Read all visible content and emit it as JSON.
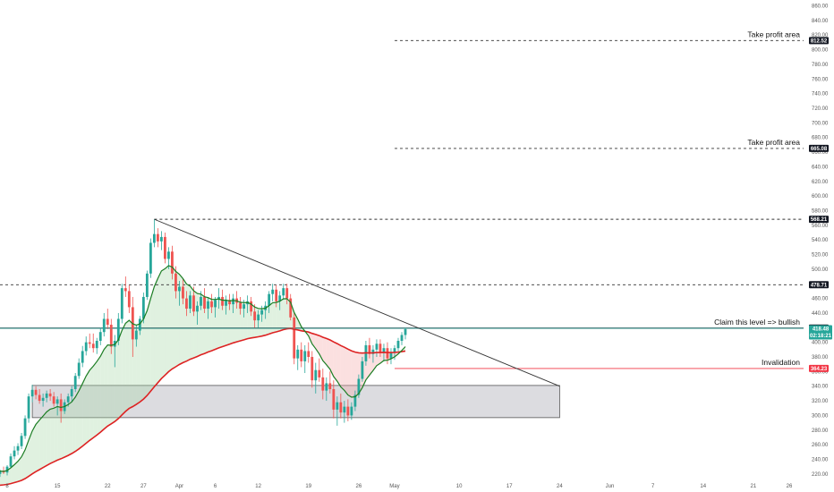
{
  "chart_data": {
    "type": "candlestick",
    "title": "",
    "xlabel": "",
    "ylabel": "",
    "ylim": [
      210,
      868
    ],
    "y_ticks": [
      220,
      240,
      260,
      280,
      300,
      320,
      340,
      360,
      380,
      400,
      420,
      440,
      460,
      480,
      500,
      520,
      540,
      560,
      580,
      600,
      620,
      640,
      660,
      680,
      700,
      720,
      740,
      760,
      780,
      800,
      820,
      840,
      860
    ],
    "y_tick_labels": [
      "220.00",
      "240.00",
      "260.00",
      "280.00",
      "300.00",
      "320.00",
      "340.00",
      "360.00",
      "380.00",
      "400.00",
      "420.00",
      "440.00",
      "460.00",
      "480.00",
      "500.00",
      "520.00",
      "540.00",
      "560.00",
      "580.00",
      "600.00",
      "620.00",
      "640.00",
      "660.00",
      "680.00",
      "700.00",
      "720.00",
      "740.00",
      "760.00",
      "780.00",
      "800.00",
      "820.00",
      "840.00",
      "860.00"
    ],
    "x_tick_labels": [
      "8",
      "15",
      "22",
      "27",
      "Apr",
      "6",
      "12",
      "19",
      "26",
      "May",
      "10",
      "17",
      "24",
      "Jun",
      "7",
      "14",
      "21",
      "26"
    ],
    "x_tick_days": [
      0,
      7,
      14,
      19,
      24,
      29,
      35,
      42,
      49,
      54,
      63,
      70,
      77,
      84,
      90,
      97,
      104,
      109
    ],
    "x_range_days": [
      -1,
      111
    ],
    "price_levels": [
      {
        "label": "Take profit area",
        "value": 812.52,
        "badge": "812.52",
        "style": "dashed"
      },
      {
        "label": "Take profit area",
        "value": 665.08,
        "badge": "665.08",
        "style": "dashed"
      },
      {
        "label": "",
        "value": 568.21,
        "badge": "568.21",
        "style": "dashed"
      },
      {
        "label": "",
        "value": 478.71,
        "badge": "478.71",
        "style": "dashed"
      },
      {
        "label": "Claim this level => bullish",
        "value": 419.44,
        "badge": "419.44",
        "style": "solid"
      },
      {
        "label": "Invalidation",
        "value": 364.23,
        "badge": "364.23",
        "style": "red"
      }
    ],
    "current_price": {
      "value": 418.48,
      "label": "418.48",
      "countdown": "02:18:21"
    },
    "trendline": {
      "from": [
        20.5,
        568.21
      ],
      "to": [
        77,
        340
      ]
    },
    "support_zone": {
      "x_from": 3.5,
      "x_to": 77,
      "y_low": 297,
      "y_high": 341
    },
    "candles": [
      [
        -1,
        220,
        226,
        216,
        224
      ],
      [
        -0.5,
        224,
        230,
        220,
        222
      ],
      [
        0,
        222,
        232,
        218,
        230
      ],
      [
        0.5,
        230,
        248,
        228,
        244
      ],
      [
        1,
        244,
        258,
        240,
        252
      ],
      [
        1.5,
        252,
        262,
        246,
        258
      ],
      [
        2,
        258,
        276,
        254,
        272
      ],
      [
        2.5,
        272,
        300,
        268,
        296
      ],
      [
        3,
        296,
        330,
        290,
        326
      ],
      [
        3.5,
        326,
        342,
        318,
        335
      ],
      [
        4,
        335,
        340,
        322,
        328
      ],
      [
        4.5,
        328,
        336,
        316,
        320
      ],
      [
        5,
        320,
        330,
        312,
        324
      ],
      [
        5.5,
        324,
        334,
        318,
        330
      ],
      [
        6,
        330,
        336,
        320,
        326
      ],
      [
        6.5,
        326,
        332,
        312,
        316
      ],
      [
        7,
        316,
        326,
        300,
        322
      ],
      [
        7.5,
        322,
        330,
        290,
        306
      ],
      [
        8,
        306,
        322,
        302,
        318
      ],
      [
        8.5,
        318,
        330,
        312,
        326
      ],
      [
        9,
        326,
        340,
        318,
        336
      ],
      [
        9.5,
        336,
        358,
        332,
        354
      ],
      [
        10,
        354,
        378,
        350,
        372
      ],
      [
        10.5,
        372,
        395,
        366,
        388
      ],
      [
        11,
        388,
        408,
        382,
        400
      ],
      [
        11.5,
        400,
        412,
        392,
        398
      ],
      [
        12,
        398,
        412,
        386,
        392
      ],
      [
        12.5,
        392,
        406,
        384,
        402
      ],
      [
        13,
        402,
        420,
        396,
        414
      ],
      [
        13.5,
        414,
        440,
        408,
        432
      ],
      [
        14,
        432,
        446,
        418,
        424
      ],
      [
        14.5,
        424,
        432,
        384,
        394
      ],
      [
        15,
        394,
        410,
        366,
        402
      ],
      [
        15.5,
        402,
        440,
        396,
        432
      ],
      [
        16,
        432,
        480,
        426,
        474
      ],
      [
        16.5,
        474,
        490,
        462,
        470
      ],
      [
        17,
        470,
        478,
        440,
        448
      ],
      [
        17.5,
        448,
        462,
        380,
        404
      ],
      [
        18,
        404,
        424,
        394,
        416
      ],
      [
        18.5,
        416,
        436,
        410,
        432
      ],
      [
        19,
        432,
        468,
        426,
        462
      ],
      [
        19.5,
        462,
        498,
        458,
        494
      ],
      [
        20,
        494,
        542,
        488,
        536
      ],
      [
        20.5,
        536,
        568,
        530,
        548
      ],
      [
        21,
        548,
        556,
        530,
        538
      ],
      [
        21.5,
        538,
        552,
        526,
        544
      ],
      [
        22,
        544,
        550,
        508,
        514
      ],
      [
        22.5,
        514,
        530,
        500,
        524
      ],
      [
        23,
        524,
        532,
        486,
        494
      ],
      [
        23.5,
        494,
        504,
        460,
        470
      ],
      [
        24,
        470,
        484,
        450,
        476
      ],
      [
        24.5,
        476,
        486,
        452,
        460
      ],
      [
        25,
        460,
        470,
        436,
        446
      ],
      [
        25.5,
        446,
        470,
        440,
        464
      ],
      [
        26,
        464,
        476,
        436,
        442
      ],
      [
        26.5,
        442,
        456,
        424,
        450
      ],
      [
        27,
        450,
        470,
        444,
        462
      ],
      [
        27.5,
        462,
        474,
        440,
        446
      ],
      [
        28,
        446,
        462,
        432,
        456
      ],
      [
        28.5,
        456,
        466,
        440,
        448
      ],
      [
        29,
        448,
        462,
        434,
        458
      ],
      [
        29.5,
        458,
        474,
        446,
        462
      ],
      [
        30,
        462,
        472,
        444,
        450
      ],
      [
        30.5,
        450,
        464,
        438,
        458
      ],
      [
        31,
        458,
        466,
        444,
        452
      ],
      [
        31.5,
        452,
        466,
        440,
        460
      ],
      [
        32,
        460,
        470,
        446,
        454
      ],
      [
        32.5,
        454,
        462,
        438,
        446
      ],
      [
        33,
        446,
        458,
        434,
        452
      ],
      [
        33.5,
        452,
        464,
        440,
        456
      ],
      [
        34,
        456,
        462,
        436,
        442
      ],
      [
        34.5,
        442,
        452,
        420,
        430
      ],
      [
        35,
        430,
        444,
        420,
        438
      ],
      [
        35.5,
        438,
        450,
        428,
        444
      ],
      [
        36,
        444,
        456,
        432,
        450
      ],
      [
        36.5,
        450,
        470,
        440,
        466
      ],
      [
        37,
        466,
        480,
        456,
        472
      ],
      [
        37.5,
        472,
        478,
        448,
        456
      ],
      [
        38,
        456,
        470,
        444,
        464
      ],
      [
        38.5,
        464,
        480,
        458,
        474
      ],
      [
        39,
        474,
        480,
        452,
        460
      ],
      [
        39.5,
        460,
        466,
        430,
        434
      ],
      [
        40,
        434,
        440,
        370,
        378
      ],
      [
        40.5,
        378,
        396,
        362,
        390
      ],
      [
        41,
        390,
        400,
        366,
        374
      ],
      [
        41.5,
        374,
        396,
        358,
        388
      ],
      [
        42,
        388,
        400,
        372,
        380
      ],
      [
        42.5,
        380,
        388,
        338,
        348
      ],
      [
        43,
        348,
        372,
        330,
        362
      ],
      [
        43.5,
        362,
        378,
        346,
        352
      ],
      [
        44,
        352,
        364,
        322,
        334
      ],
      [
        44.5,
        334,
        352,
        320,
        344
      ],
      [
        45,
        344,
        360,
        330,
        336
      ],
      [
        45.5,
        336,
        348,
        296,
        308
      ],
      [
        46,
        308,
        326,
        286,
        318
      ],
      [
        46.5,
        318,
        330,
        296,
        304
      ],
      [
        47,
        304,
        320,
        290,
        312
      ],
      [
        47.5,
        312,
        322,
        292,
        300
      ],
      [
        48,
        300,
        318,
        294,
        312
      ],
      [
        48.5,
        312,
        334,
        306,
        328
      ],
      [
        49,
        328,
        356,
        324,
        350
      ],
      [
        49.5,
        350,
        380,
        346,
        374
      ],
      [
        50,
        374,
        402,
        368,
        396
      ],
      [
        50.5,
        396,
        406,
        378,
        384
      ],
      [
        51,
        384,
        396,
        372,
        390
      ],
      [
        51.5,
        390,
        404,
        380,
        398
      ],
      [
        52,
        398,
        404,
        380,
        386
      ],
      [
        52.5,
        386,
        398,
        374,
        392
      ],
      [
        53,
        392,
        400,
        370,
        378
      ],
      [
        53.5,
        378,
        392,
        370,
        386
      ],
      [
        54,
        386,
        396,
        376,
        392
      ],
      [
        54.5,
        392,
        406,
        388,
        402
      ],
      [
        55,
        402,
        414,
        396,
        410
      ],
      [
        55.5,
        410,
        420,
        404,
        418
      ]
    ]
  },
  "colors": {
    "up": "#26a69a",
    "down": "#ef5350",
    "ema_fast": "#1b7d23",
    "ema_slow": "#dd2222",
    "current_badge": "#26a69a",
    "invalidation": "#f23645",
    "level_badge": "#131722"
  }
}
